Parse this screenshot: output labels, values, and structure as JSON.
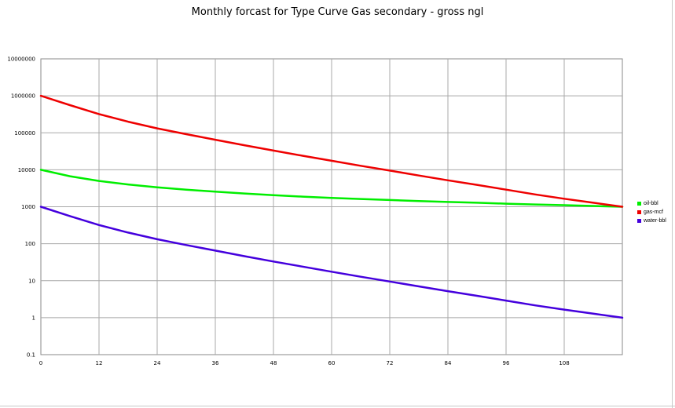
{
  "chart_data": {
    "type": "line",
    "title": "Monthly forcast for Type Curve Gas secondary - gross ngl",
    "xlabel": "",
    "ylabel": "",
    "y_scale": "log",
    "xlim": [
      0,
      120
    ],
    "ylim": [
      0.1,
      10000000
    ],
    "grid": true,
    "legend_position": "right",
    "x_ticks": [
      "0",
      "12",
      "24",
      "36",
      "48",
      "60",
      "72",
      "84",
      "96",
      "108"
    ],
    "y_ticks": [
      "0.1",
      "1",
      "10",
      "100",
      "1000",
      "10000",
      "100000",
      "1000000",
      "10000000"
    ],
    "x": [
      0,
      6,
      12,
      18,
      24,
      30,
      36,
      42,
      48,
      54,
      60,
      66,
      72,
      78,
      84,
      90,
      96,
      102,
      108,
      114,
      120
    ],
    "series": [
      {
        "name": "oil-bbl",
        "color": "#00ee00",
        "values": [
          10000,
          6700,
          5000,
          4000,
          3350,
          2900,
          2550,
          2280,
          2060,
          1880,
          1740,
          1620,
          1520,
          1430,
          1350,
          1280,
          1210,
          1150,
          1100,
          1050,
          1000
        ]
      },
      {
        "name": "gas-mcf",
        "color": "#ee0000",
        "values": [
          1000000,
          560000,
          320000,
          200000,
          132000,
          92000,
          65000,
          46000,
          33000,
          24000,
          17500,
          12800,
          9500,
          7000,
          5200,
          3900,
          2900,
          2150,
          1650,
          1280,
          1000
        ]
      },
      {
        "name": "water-bbl",
        "color": "#4400dd",
        "values": [
          1000,
          560,
          320,
          200,
          132,
          92,
          65,
          46,
          33,
          24,
          17.5,
          12.8,
          9.5,
          7,
          5.2,
          3.9,
          2.9,
          2.15,
          1.65,
          1.28,
          1
        ]
      }
    ]
  }
}
